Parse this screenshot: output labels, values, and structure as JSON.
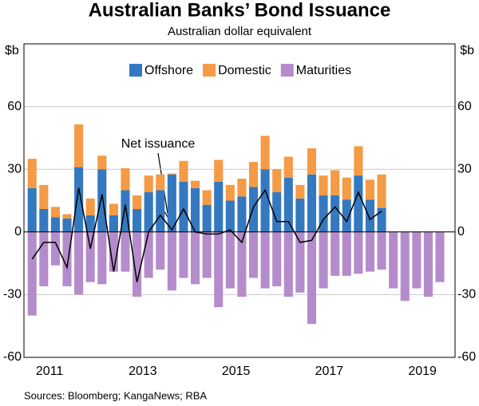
{
  "chart_data": {
    "type": "bar",
    "title": "Australian Banks’ Bond Issuance",
    "subtitle": "Australian dollar equivalent",
    "y_label": "$b",
    "y2_label": "$b",
    "source": "Sources: Bloomberg; KangaNews; RBA",
    "annotation": "Net issuance",
    "x": [
      2011.125,
      2011.375,
      2011.625,
      2011.875,
      2012.125,
      2012.375,
      2012.625,
      2012.875,
      2013.125,
      2013.375,
      2013.625,
      2013.875,
      2014.125,
      2014.375,
      2014.625,
      2014.875,
      2015.125,
      2015.375,
      2015.625,
      2015.875,
      2016.125,
      2016.375,
      2016.625,
      2016.875,
      2017.125,
      2017.375,
      2017.625,
      2017.875,
      2018.125,
      2018.375,
      2018.625,
      2018.875,
      2019.125,
      2019.375,
      2019.625,
      2019.875
    ],
    "xlim": [
      2010.95,
      2020.2
    ],
    "xticks": [
      {
        "value": 2011.5,
        "label": "2011"
      },
      {
        "value": 2013.5,
        "label": "2013"
      },
      {
        "value": 2015.5,
        "label": "2015"
      },
      {
        "value": 2017.5,
        "label": "2017"
      },
      {
        "value": 2019.5,
        "label": "2019"
      }
    ],
    "ylim": [
      -60,
      90
    ],
    "yticks": [
      -60,
      -30,
      0,
      30,
      60
    ],
    "grid": true,
    "legend": "top",
    "series": [
      {
        "name": "Offshore",
        "color": "#3478c0",
        "stack": "issuance",
        "values": [
          21,
          11,
          7,
          6.5,
          31,
          8,
          30,
          8,
          20,
          11,
          19,
          20,
          27.5,
          24,
          21,
          13,
          24,
          15,
          17,
          21.5,
          30,
          19,
          26,
          16,
          27.5,
          17.5,
          17.5,
          15.5,
          27,
          15.5,
          11.5,
          null,
          null,
          null,
          null,
          null
        ]
      },
      {
        "name": "Domestic",
        "color": "#f59a45",
        "stack": "issuance",
        "values": [
          14,
          11.5,
          5,
          2,
          20.5,
          8,
          6.5,
          5.5,
          10.5,
          6.5,
          8,
          7.5,
          0.5,
          10,
          3.5,
          7,
          10.5,
          7.5,
          8.5,
          12,
          16,
          11,
          10,
          6.5,
          12.5,
          9.5,
          12,
          10.5,
          14,
          9.5,
          16,
          null,
          null,
          null,
          null,
          null
        ]
      },
      {
        "name": "Maturities",
        "color": "#b48ccb",
        "values": [
          -40,
          -26,
          -16,
          -26,
          -30,
          -24,
          -25,
          -19,
          -19,
          -31,
          -22,
          -18,
          -28,
          -22,
          -25,
          -22,
          -36,
          -27,
          -31,
          -22,
          -27,
          -26,
          -31,
          -29,
          -44,
          -27,
          -21,
          -21,
          -20,
          -19,
          -18,
          -27,
          -33,
          -27,
          -31,
          -24
        ]
      },
      {
        "name": "Net issuance",
        "type": "line",
        "color": "#000000",
        "values": [
          -13,
          -5,
          -5,
          -17,
          21,
          -8,
          18,
          -19,
          13,
          -24,
          0,
          8,
          1,
          11,
          0,
          -1,
          -1,
          1,
          -5,
          12,
          20,
          5,
          5,
          -5,
          -4,
          6,
          12,
          5,
          19,
          6,
          10,
          null,
          null,
          null,
          null,
          null
        ]
      }
    ]
  }
}
